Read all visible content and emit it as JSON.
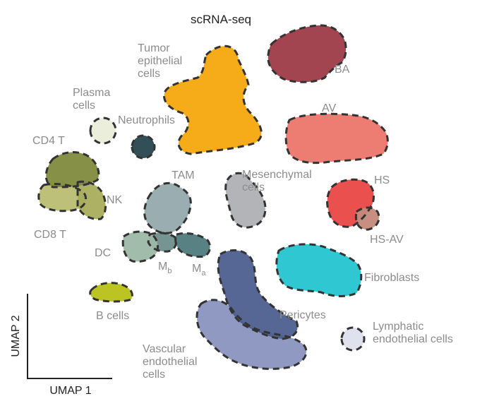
{
  "chart_data": {
    "type": "scatter",
    "title": "scRNA-seq",
    "xlabel": "UMAP 1",
    "ylabel": "UMAP 2",
    "grid": false,
    "clusters": [
      {
        "key": "tumor",
        "name": "Tumor epithelial cells",
        "lines": [
          "Tumor",
          "epithelial",
          "cells"
        ],
        "color": "#f5a70d"
      },
      {
        "key": "ba",
        "name": "BA",
        "lines": [
          "BA"
        ],
        "color": "#9e3b48"
      },
      {
        "key": "av",
        "name": "AV",
        "lines": [
          "AV"
        ],
        "color": "#ec756b"
      },
      {
        "key": "plasma",
        "name": "Plasma cells",
        "lines": [
          "Plasma",
          "cells"
        ],
        "color": "#c9cd9a"
      },
      {
        "key": "neutrophils",
        "name": "Neutrophils",
        "lines": [
          "Neutrophils"
        ],
        "color": "#27444d"
      },
      {
        "key": "cd4t",
        "name": "CD4 T",
        "lines": [
          "CD4 T"
        ],
        "color": "#7f8a3c"
      },
      {
        "key": "nk",
        "name": "NK",
        "lines": [
          "NK"
        ],
        "color": "#a8ad5c"
      },
      {
        "key": "cd8t",
        "name": "CD8 T",
        "lines": [
          "CD8 T"
        ],
        "color": "#b9bd72"
      },
      {
        "key": "tam",
        "name": "TAM",
        "lines": [
          "TAM"
        ],
        "color": "#95a9ad"
      },
      {
        "key": "mesenchymal",
        "name": "Mesenchymal cells",
        "lines": [
          "Mesenchymal",
          "cells"
        ],
        "color": "#aeb0b3"
      },
      {
        "key": "hs",
        "name": "HS",
        "lines": [
          "HS"
        ],
        "color": "#e84744"
      },
      {
        "key": "hsav",
        "name": "HS-AV",
        "lines": [
          "HS-AV"
        ],
        "color": "#c4897a"
      },
      {
        "key": "dc",
        "name": "DC",
        "lines": [
          "DC"
        ],
        "color": "#9cb8a6"
      },
      {
        "key": "mb",
        "name": "Mb",
        "base": "M",
        "subscript": "b",
        "color": "#6f8f8c"
      },
      {
        "key": "ma",
        "name": "Ma",
        "base": "M",
        "subscript": "a",
        "color": "#4f7a7c"
      },
      {
        "key": "fibroblasts",
        "name": "Fibroblasts",
        "lines": [
          "Fibroblasts"
        ],
        "color": "#24c4cf"
      },
      {
        "key": "bcells",
        "name": "B cells",
        "lines": [
          "B cells"
        ],
        "color": "#b8c117"
      },
      {
        "key": "pericytes",
        "name": "Pericytes",
        "lines": [
          "Pericytes"
        ],
        "color": "#4d5f8f"
      },
      {
        "key": "vascular",
        "name": "Vascular endothelial cells",
        "lines": [
          "Vascular",
          "endothelial",
          "cells"
        ],
        "color": "#8a93bf"
      },
      {
        "key": "lymphatic",
        "name": "Lymphatic endothelial cells",
        "lines": [
          "Lymphatic",
          "endothelial cells"
        ],
        "color": "#a7aad2"
      }
    ]
  }
}
